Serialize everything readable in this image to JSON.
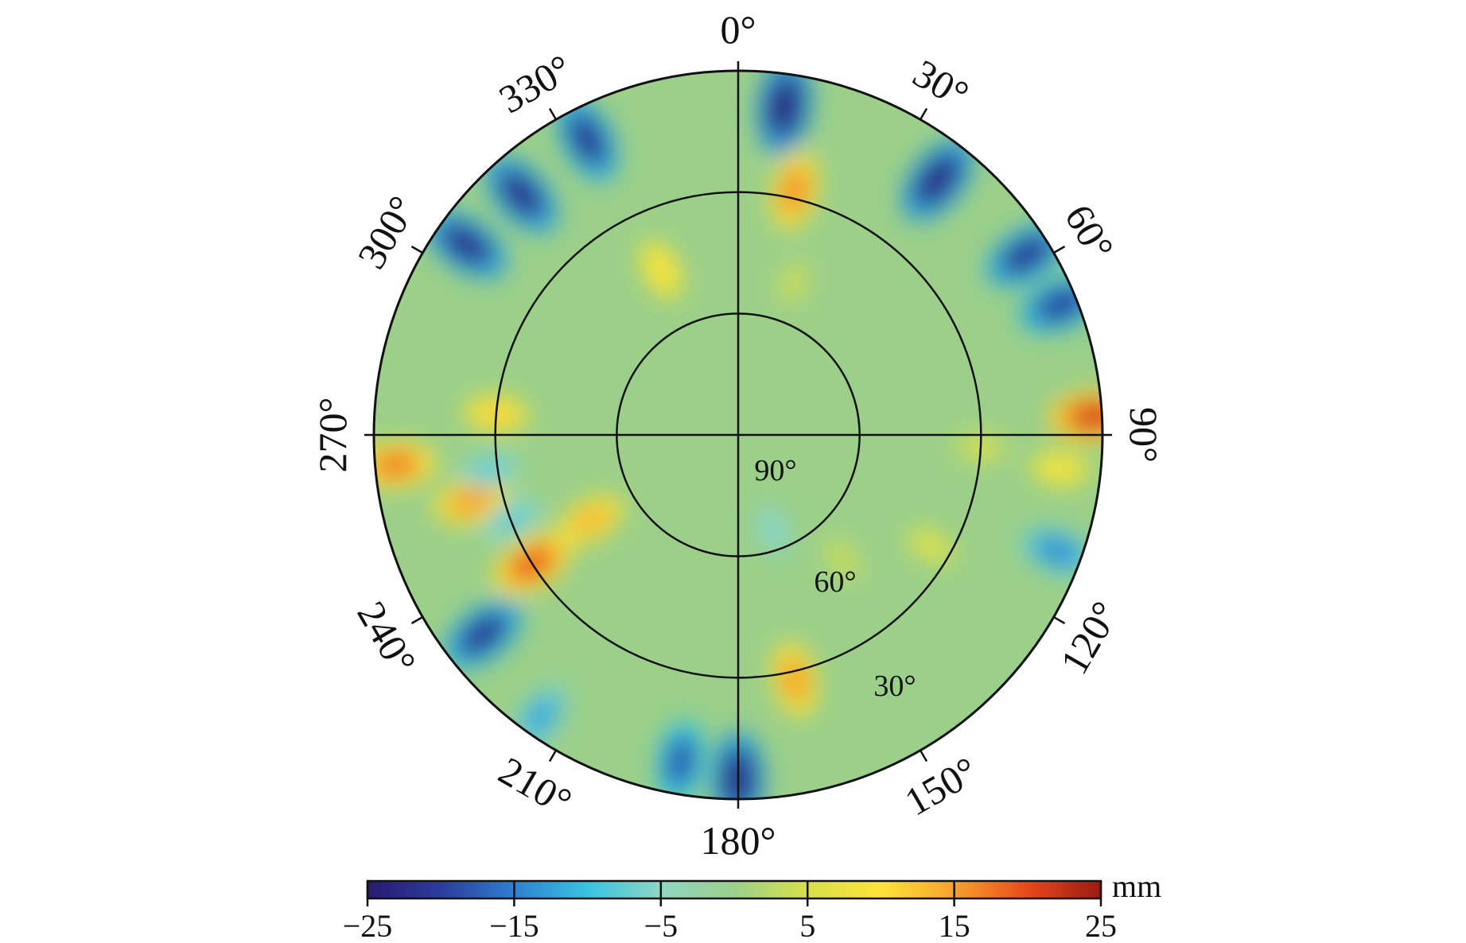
{
  "chart_data": {
    "type": "heatmap",
    "projection": "polar-skyplot",
    "title": "",
    "azimuth_ticks": [
      {
        "deg": 0,
        "label": "0°"
      },
      {
        "deg": 30,
        "label": "30°"
      },
      {
        "deg": 60,
        "label": "60°"
      },
      {
        "deg": 90,
        "label": "90°"
      },
      {
        "deg": 120,
        "label": "120°"
      },
      {
        "deg": 150,
        "label": "150°"
      },
      {
        "deg": 180,
        "label": "180°"
      },
      {
        "deg": 210,
        "label": "210°"
      },
      {
        "deg": 240,
        "label": "240°"
      },
      {
        "deg": 270,
        "label": "270°"
      },
      {
        "deg": 300,
        "label": "300°"
      },
      {
        "deg": 330,
        "label": "330°"
      }
    ],
    "elevation_circles": [
      {
        "elev": 0,
        "label": ""
      },
      {
        "elev": 30,
        "label": "30°"
      },
      {
        "elev": 60,
        "label": "60°"
      },
      {
        "elev": 90,
        "label": "90°"
      }
    ],
    "colorbar": {
      "min": -25,
      "max": 25,
      "ticks": [
        -25,
        -15,
        -5,
        5,
        15,
        25
      ],
      "tick_labels": [
        "−25",
        "−15",
        "−5",
        "5",
        "15",
        "25"
      ],
      "unit": "mm",
      "colormap": [
        "#2a1a72",
        "#2b3c9c",
        "#2f7fd0",
        "#37c4e0",
        "#8fd6c4",
        "#9cd08a",
        "#d8e04a",
        "#fde33a",
        "#f7a22c",
        "#e9481c",
        "#9a1b12"
      ]
    },
    "background_value": 0,
    "blobs": [
      {
        "az": 8,
        "elev": 8,
        "value": -24
      },
      {
        "az": 38,
        "elev": 10,
        "value": -23
      },
      {
        "az": 58,
        "elev": 6,
        "value": -21
      },
      {
        "az": 68,
        "elev": 4,
        "value": -20
      },
      {
        "az": 333,
        "elev": 8,
        "value": -21
      },
      {
        "az": 318,
        "elev": 10,
        "value": -22
      },
      {
        "az": 305,
        "elev": 8,
        "value": -22
      },
      {
        "az": 13,
        "elev": 28,
        "value": 16
      },
      {
        "az": 335,
        "elev": 45,
        "value": 10
      },
      {
        "az": 20,
        "elev": 50,
        "value": 4
      },
      {
        "az": 87,
        "elev": 2,
        "value": 21
      },
      {
        "az": 96,
        "elev": 10,
        "value": 9
      },
      {
        "az": 110,
        "elev": 6,
        "value": -14
      },
      {
        "az": 93,
        "elev": 30,
        "value": 5
      },
      {
        "az": 167,
        "elev": 28,
        "value": 15
      },
      {
        "az": 180,
        "elev": 5,
        "value": -23
      },
      {
        "az": 190,
        "elev": 8,
        "value": -18
      },
      {
        "az": 215,
        "elev": 5,
        "value": -12
      },
      {
        "az": 232,
        "elev": 10,
        "value": -21
      },
      {
        "az": 238,
        "elev": 30,
        "value": 19
      },
      {
        "az": 250,
        "elev": 30,
        "value": -9
      },
      {
        "az": 240,
        "elev": 48,
        "value": 13
      },
      {
        "az": 256,
        "elev": 22,
        "value": 15
      },
      {
        "az": 265,
        "elev": 5,
        "value": 17
      },
      {
        "az": 275,
        "elev": 30,
        "value": 11
      },
      {
        "az": 262,
        "elev": 28,
        "value": -8
      },
      {
        "az": 160,
        "elev": 65,
        "value": -6
      },
      {
        "az": 140,
        "elev": 50,
        "value": 4
      },
      {
        "az": 120,
        "elev": 35,
        "value": 6
      }
    ]
  }
}
